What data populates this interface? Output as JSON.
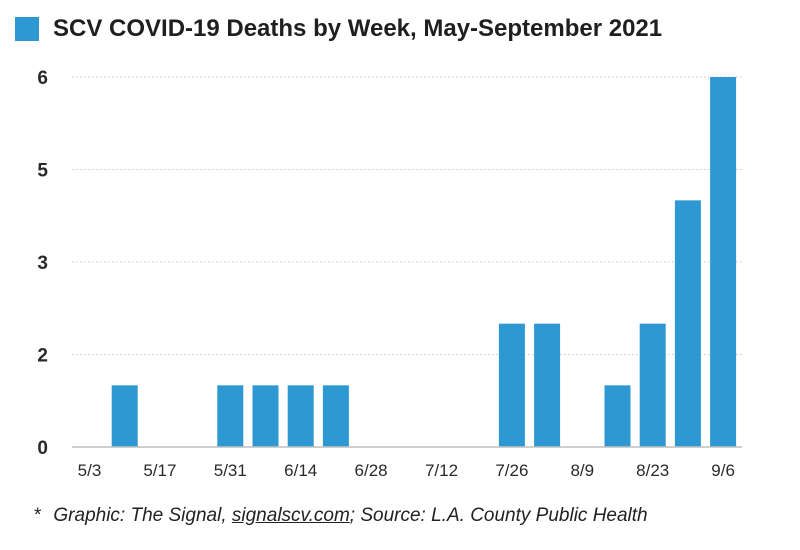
{
  "chart_data": {
    "type": "bar",
    "title": "SCV COVID-19 Deaths by Week, May-September 2021",
    "series": [
      {
        "name": "SCV COVID-19 Deaths by Week, May-September 2021",
        "color": "#2e98d2"
      }
    ],
    "categories": [
      "5/3",
      "5/10",
      "5/17",
      "5/24",
      "5/31",
      "6/7",
      "6/14",
      "6/21",
      "6/28",
      "7/5",
      "7/12",
      "7/19",
      "7/26",
      "8/2",
      "8/9",
      "8/16",
      "8/23",
      "8/30",
      "9/6"
    ],
    "values": [
      0,
      1,
      0,
      0,
      1,
      1,
      1,
      1,
      0,
      0,
      0,
      0,
      2,
      2,
      0,
      1,
      2,
      4,
      6
    ],
    "x_tick_labels": [
      "5/3",
      "5/17",
      "5/31",
      "6/14",
      "6/28",
      "7/12",
      "7/26",
      "8/9",
      "8/23",
      "9/6"
    ],
    "y_tick_labels": [
      "0",
      "2",
      "3",
      "5",
      "6"
    ],
    "ylim": [
      0,
      6
    ],
    "grid": true,
    "legend_position": "top-left",
    "xlabel": "",
    "ylabel": ""
  },
  "footnote": {
    "marker": "*",
    "prefix": "Graphic: The Signal, ",
    "link_text": "signalscv.com",
    "suffix": "; Source: L.A. County Public Health"
  }
}
